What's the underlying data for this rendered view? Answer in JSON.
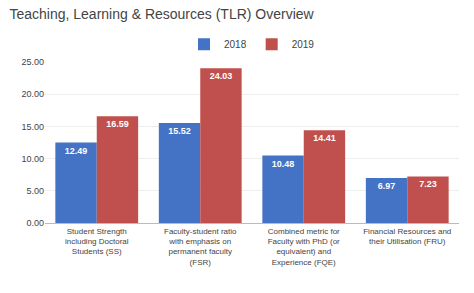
{
  "chart_data": {
    "type": "bar",
    "title": "Teaching, Learning & Resources (TLR) Overview",
    "categories": [
      "Student Strength\nincluding Doctoral\nStudents (SS)",
      "Faculty-student ratio\nwith emphasis on\npermanent faculty\n(FSR)",
      "Combined metric for\nFaculty with PhD (or\nequivalent) and\nExperience (FQE)",
      "Financial Resources and\ntheir Utilisation (FRU)"
    ],
    "series": [
      {
        "name": "2018",
        "color": "#4472C4",
        "values": [
          12.49,
          15.52,
          10.48,
          6.97
        ]
      },
      {
        "name": "2019",
        "color": "#C0504D",
        "values": [
          16.59,
          24.03,
          14.41,
          7.23
        ]
      }
    ],
    "ylim": [
      0,
      25
    ],
    "yticks": [
      {
        "value": 0,
        "label": "0.00"
      },
      {
        "value": 5,
        "label": "5.00"
      },
      {
        "value": 10,
        "label": "10.00"
      },
      {
        "value": 15,
        "label": "15.00"
      },
      {
        "value": 20,
        "label": "20.00"
      },
      {
        "value": 25,
        "label": "25.00"
      }
    ],
    "grid": true,
    "legend": "top",
    "data_labels": true
  }
}
